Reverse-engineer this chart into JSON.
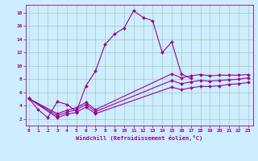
{
  "xlabel": "Windchill (Refroidissement éolien,°C)",
  "bg_color": "#cceeff",
  "line_color": "#990099",
  "grid_color": "#aabbaa",
  "x_ticks": [
    0,
    1,
    2,
    3,
    4,
    5,
    6,
    7,
    8,
    9,
    10,
    11,
    12,
    13,
    14,
    15,
    16,
    17,
    18,
    19,
    20,
    21,
    22,
    23
  ],
  "y_ticks": [
    2,
    4,
    6,
    8,
    10,
    12,
    14,
    16,
    18
  ],
  "xlim": [
    -0.3,
    23.5
  ],
  "ylim": [
    1.0,
    19.2
  ],
  "main_x": [
    0,
    1,
    2,
    3,
    4,
    5,
    6,
    7,
    8,
    9,
    10,
    11,
    12,
    13,
    14,
    15,
    16,
    17
  ],
  "main_y": [
    5.1,
    3.4,
    2.2,
    4.6,
    4.2,
    3.1,
    7.0,
    9.2,
    13.2,
    14.8,
    15.7,
    18.3,
    17.3,
    16.8,
    12.0,
    13.6,
    8.8,
    8.1
  ],
  "line1_x": [
    0,
    3,
    4,
    5,
    6,
    7,
    15,
    16,
    17,
    18,
    19,
    20,
    21,
    22,
    23
  ],
  "line1_y": [
    5.1,
    2.8,
    3.3,
    3.7,
    4.5,
    3.4,
    8.8,
    8.2,
    8.5,
    8.7,
    8.5,
    8.6,
    8.6,
    8.6,
    8.7
  ],
  "line2_x": [
    0,
    3,
    4,
    5,
    6,
    7,
    15,
    16,
    17,
    18,
    19,
    20,
    21,
    22,
    23
  ],
  "line2_y": [
    5.1,
    2.5,
    3.0,
    3.4,
    4.2,
    3.1,
    7.8,
    7.3,
    7.6,
    7.8,
    7.7,
    7.8,
    7.9,
    8.0,
    8.2
  ],
  "line3_x": [
    0,
    3,
    4,
    5,
    6,
    7,
    15,
    16,
    17,
    18,
    19,
    20,
    21,
    22,
    23
  ],
  "line3_y": [
    5.1,
    2.2,
    2.7,
    3.0,
    3.8,
    2.8,
    6.8,
    6.4,
    6.7,
    6.9,
    6.9,
    7.0,
    7.2,
    7.3,
    7.5
  ]
}
